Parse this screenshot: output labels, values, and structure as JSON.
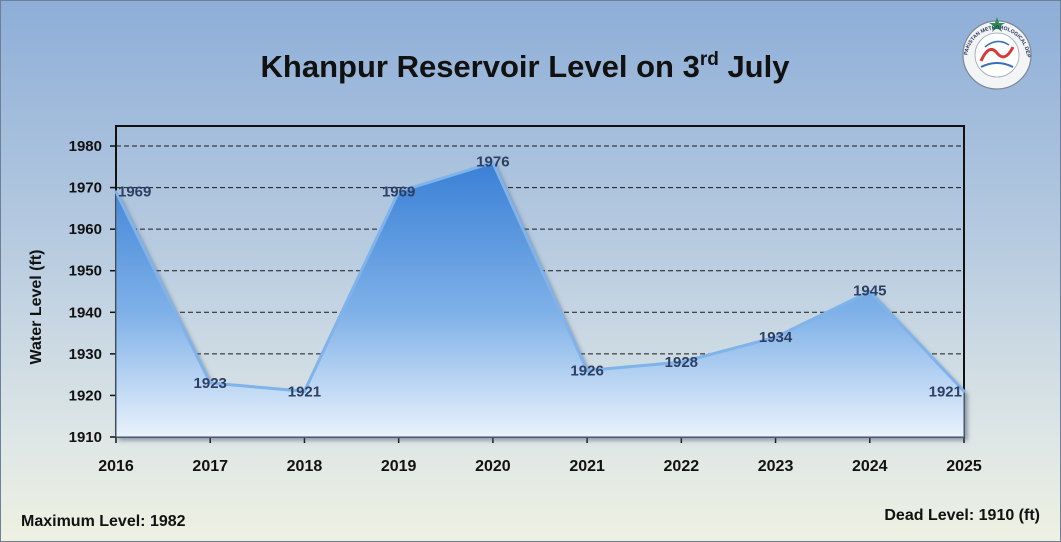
{
  "chart_data": {
    "type": "area",
    "title": "Khanpur Reservoir Level on 3",
    "title_superscript": "rd",
    "title_suffix": " July",
    "xlabel": "",
    "ylabel": "Water Level (ft)",
    "categories": [
      "2016",
      "2017",
      "2018",
      "2019",
      "2020",
      "2021",
      "2022",
      "2023",
      "2024",
      "2025"
    ],
    "values": [
      1969,
      1923,
      1921,
      1969,
      1976,
      1926,
      1928,
      1934,
      1945,
      1921
    ],
    "ylim": [
      1910,
      1980
    ],
    "yticks": [
      1910,
      1920,
      1930,
      1940,
      1950,
      1960,
      1970,
      1980
    ],
    "grid": true,
    "colors": {
      "area_top": "#3f86d8",
      "area_bottom": "#e8f1fb",
      "line": "#7fb3ea",
      "label": "#2d3f63",
      "grid": "#222222"
    }
  },
  "footer": {
    "max_level_label": "Maximum Level:",
    "max_level_value": "1982",
    "dead_level_label": "Dead Level:",
    "dead_level_value": "1910 (ft)"
  },
  "logo": {
    "icon": "pakistan-meteorological-department-logo",
    "text": "PAKISTAN METEOROLOGICAL DEPARTMENT"
  }
}
